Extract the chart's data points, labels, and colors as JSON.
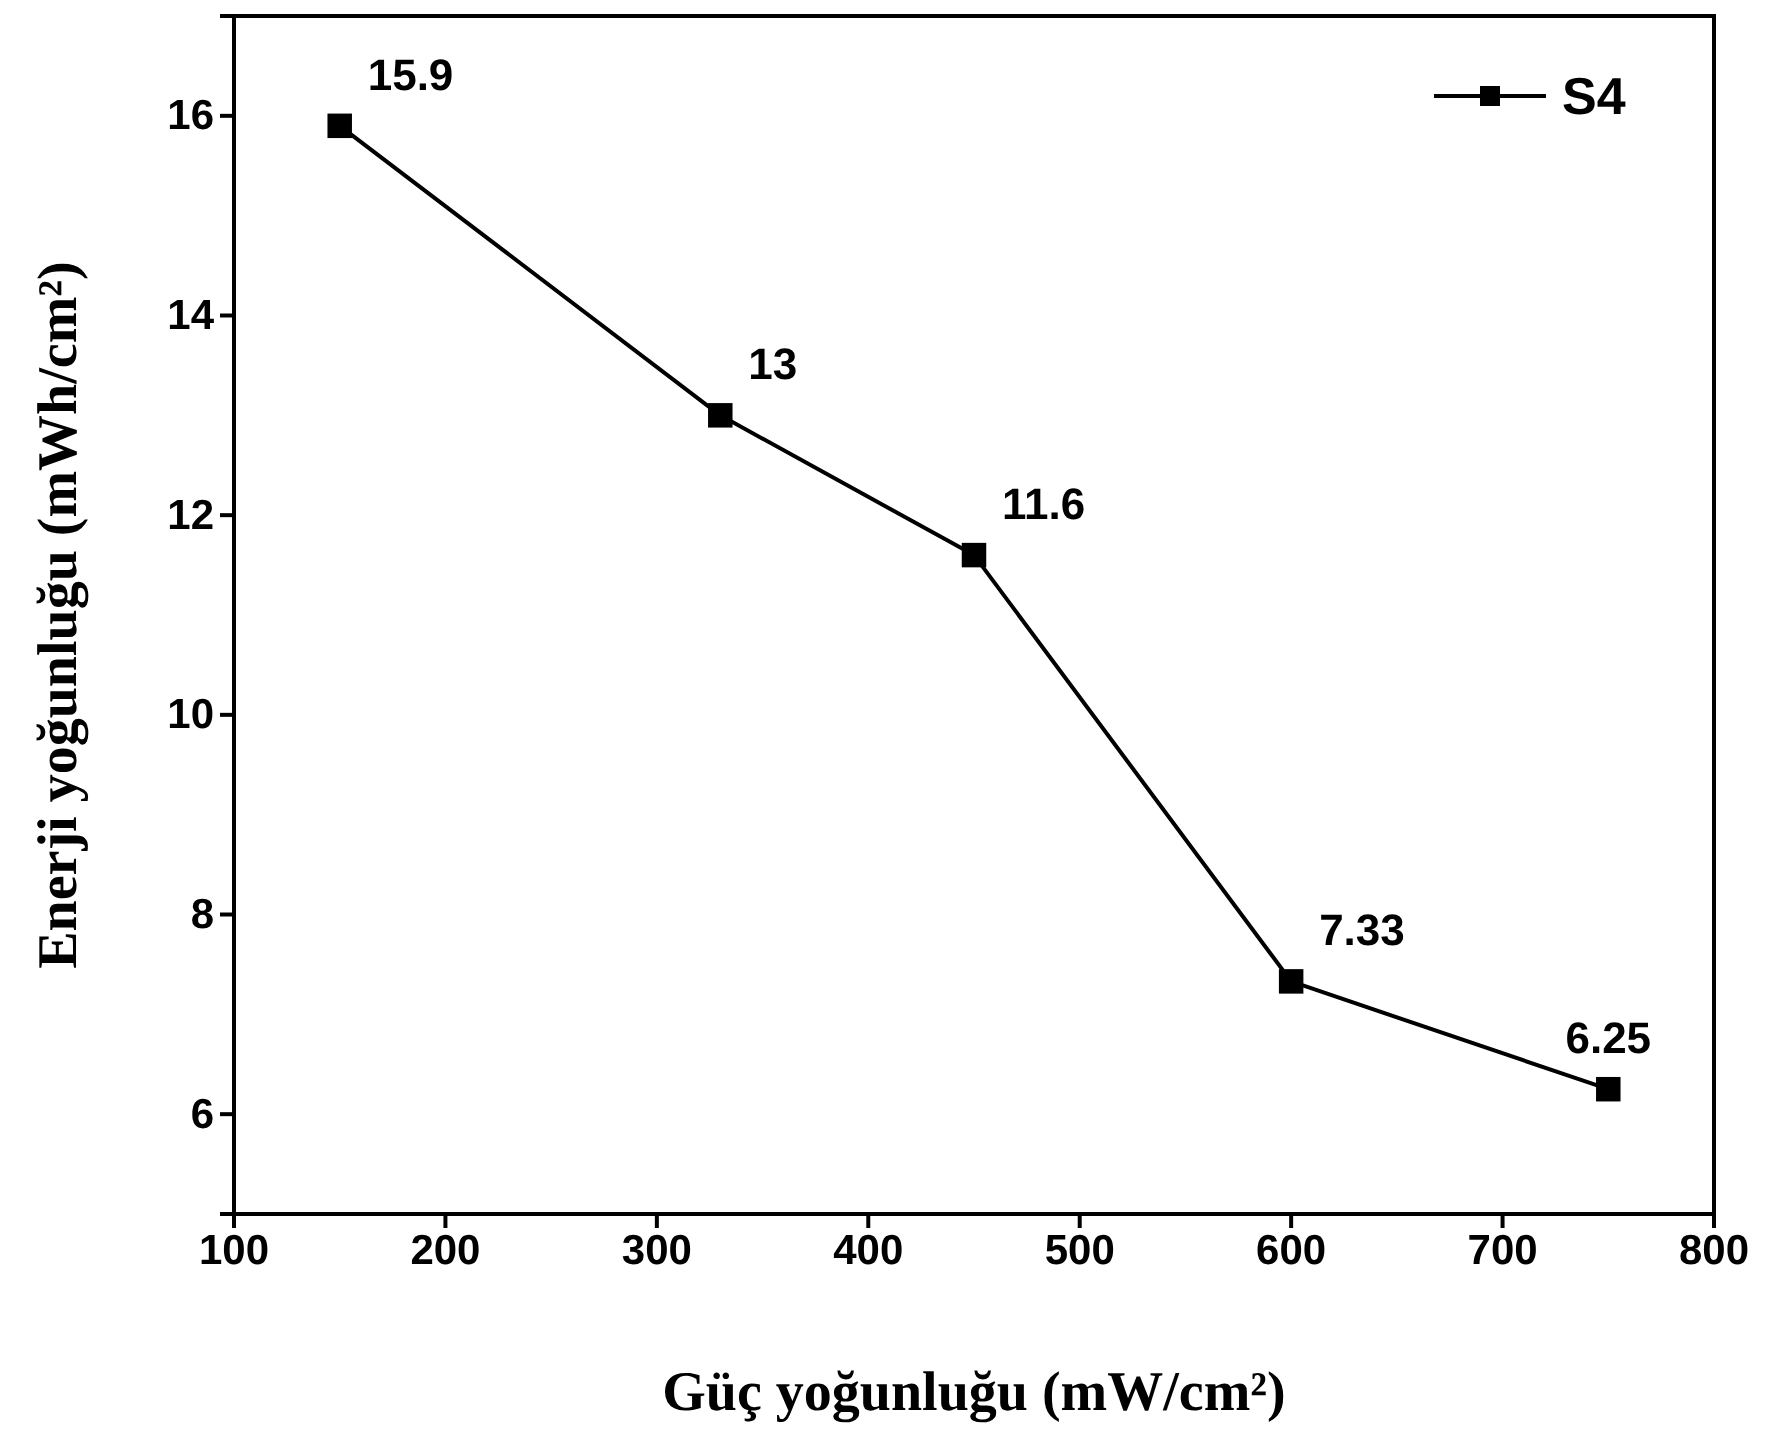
{
  "chart_data": {
    "type": "line",
    "xlabel": "Güç yoğunluğu (mW/cm²)",
    "ylabel": "Enerji yoğunluğu (mWh/cm²)",
    "x": [
      150,
      330,
      450,
      600,
      750
    ],
    "series": [
      {
        "name": "S4",
        "color": "#000000",
        "values": [
          15.9,
          13,
          11.6,
          7.33,
          6.25
        ]
      }
    ],
    "xlim": [
      100,
      800
    ],
    "xticks": [
      100,
      200,
      300,
      400,
      500,
      600,
      700,
      800
    ],
    "ylim": [
      5,
      17
    ],
    "yticks": [
      6,
      8,
      10,
      12,
      14,
      16
    ],
    "marker": "square",
    "line_style": "solid",
    "legend": "top right",
    "data_labels": true,
    "grid": false
  }
}
